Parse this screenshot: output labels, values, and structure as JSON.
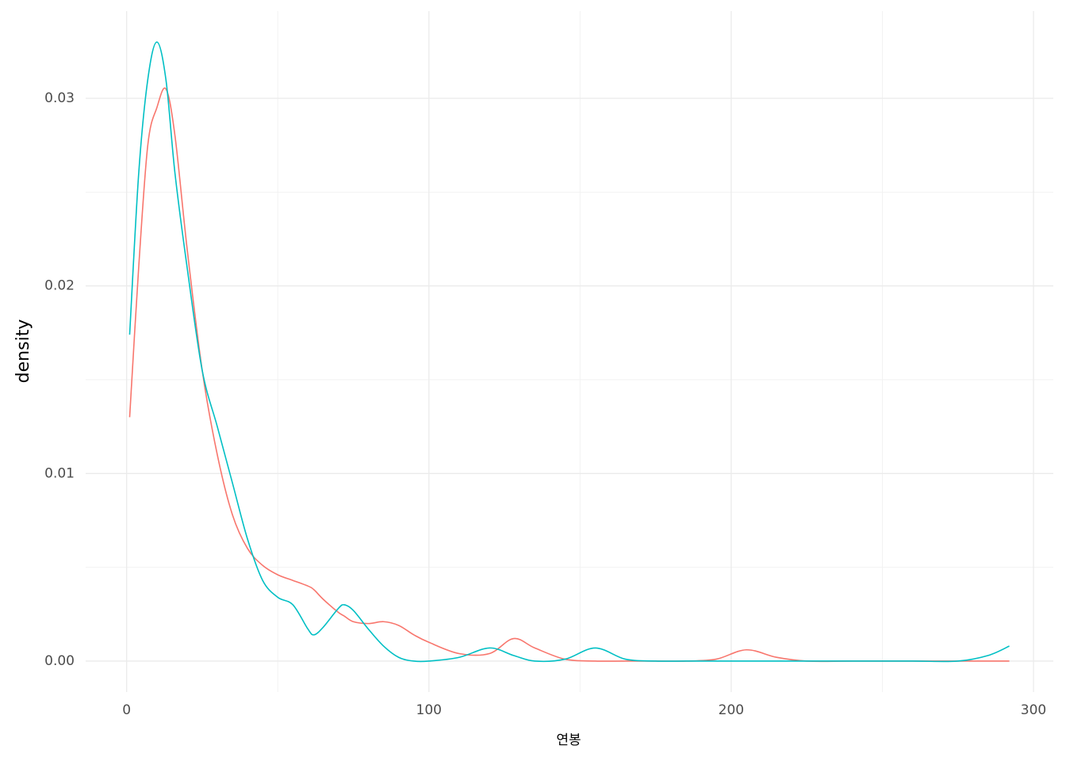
{
  "chart_data": {
    "type": "line",
    "xlabel": "연봉",
    "ylabel": "density",
    "x": [
      1,
      4,
      7,
      10,
      13,
      16,
      20,
      25,
      30,
      35,
      40,
      45,
      50,
      55,
      60,
      62,
      65,
      70,
      72,
      75,
      80,
      85,
      90,
      95,
      100,
      110,
      120,
      128,
      135,
      145,
      155,
      165,
      175,
      185,
      195,
      205,
      215,
      225,
      240,
      260,
      275,
      285,
      292
    ],
    "series": [
      {
        "color": "#f8766d",
        "values": [
          0.013,
          0.021,
          0.0275,
          0.0295,
          0.0305,
          0.028,
          0.022,
          0.0155,
          0.011,
          0.0078,
          0.006,
          0.0051,
          0.0046,
          0.0043,
          0.004,
          0.0038,
          0.0033,
          0.0026,
          0.0024,
          0.0021,
          0.002,
          0.0021,
          0.0019,
          0.0014,
          0.001,
          0.0004,
          0.0004,
          0.0012,
          0.0007,
          0.0001,
          0,
          0,
          0,
          0,
          0.0001,
          0.0006,
          0.0002,
          0,
          0,
          0,
          0,
          0,
          0
        ]
      },
      {
        "color": "#00bfc4",
        "values": [
          0.0174,
          0.026,
          0.031,
          0.033,
          0.031,
          0.026,
          0.021,
          0.0155,
          0.0125,
          0.0095,
          0.0065,
          0.0043,
          0.0034,
          0.003,
          0.0017,
          0.0014,
          0.0018,
          0.0028,
          0.003,
          0.0027,
          0.0017,
          0.0008,
          0.0002,
          0,
          0,
          0.0002,
          0.0007,
          0.0003,
          0,
          0.0001,
          0.0007,
          0.0001,
          0,
          0,
          0,
          0,
          0,
          0,
          0,
          0,
          0,
          0.0003,
          0.0008
        ]
      }
    ],
    "xlim": [
      -13.55,
      306.55
    ],
    "xticks": [
      0,
      100,
      200,
      300
    ],
    "ylim": [
      -0.00165,
      0.03465
    ],
    "yticks": [
      {
        "value": 0,
        "label": "0.00"
      },
      0.01,
      0.02,
      0.03
    ],
    "grid": true,
    "minor_grid": true
  }
}
